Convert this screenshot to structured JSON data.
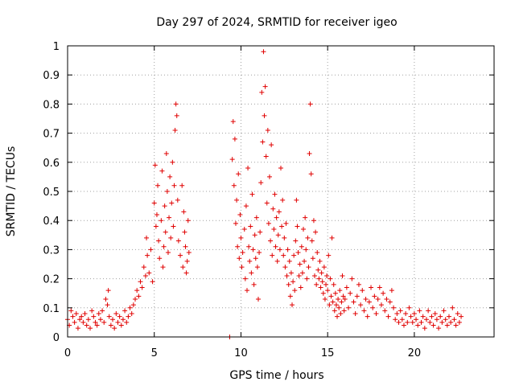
{
  "chart_data": {
    "type": "scatter",
    "title": "Day 297 of 2024, SRMTID for receiver igeo",
    "xlabel": "GPS time / hours",
    "ylabel": "SRMTID / TECUs",
    "xlim": [
      0,
      24.6
    ],
    "ylim": [
      0,
      1
    ],
    "xticks": [
      0,
      5,
      10,
      15,
      20
    ],
    "xtick_labels": [
      "0",
      "5",
      "10",
      "15",
      "20"
    ],
    "yticks": [
      0,
      0.1,
      0.2,
      0.3,
      0.4,
      0.5,
      0.6,
      0.7,
      0.8,
      0.9,
      1
    ],
    "ytick_labels": [
      "0",
      "0.1",
      "0.2",
      "0.3",
      "0.4",
      "0.5",
      "0.6",
      "0.7",
      "0.8",
      "0.9",
      "1"
    ],
    "grid": true,
    "marker": "+",
    "color": "#e00000",
    "series": [
      {
        "name": "SRMTID",
        "points": [
          [
            0.0,
            0.06
          ],
          [
            0.1,
            0.04
          ],
          [
            0.2,
            0.09
          ],
          [
            0.3,
            0.07
          ],
          [
            0.4,
            0.05
          ],
          [
            0.5,
            0.08
          ],
          [
            0.6,
            0.03
          ],
          [
            0.7,
            0.06
          ],
          [
            0.8,
            0.07
          ],
          [
            0.9,
            0.05
          ],
          [
            1.0,
            0.08
          ],
          [
            1.1,
            0.04
          ],
          [
            1.2,
            0.06
          ],
          [
            1.3,
            0.03
          ],
          [
            1.4,
            0.09
          ],
          [
            1.5,
            0.07
          ],
          [
            1.6,
            0.05
          ],
          [
            1.7,
            0.04
          ],
          [
            1.8,
            0.08
          ],
          [
            1.9,
            0.06
          ],
          [
            2.0,
            0.09
          ],
          [
            2.1,
            0.05
          ],
          [
            2.2,
            0.13
          ],
          [
            2.3,
            0.11
          ],
          [
            2.35,
            0.16
          ],
          [
            2.4,
            0.07
          ],
          [
            2.5,
            0.04
          ],
          [
            2.6,
            0.06
          ],
          [
            2.7,
            0.03
          ],
          [
            2.8,
            0.08
          ],
          [
            2.9,
            0.05
          ],
          [
            3.0,
            0.07
          ],
          [
            3.1,
            0.04
          ],
          [
            3.2,
            0.06
          ],
          [
            3.3,
            0.09
          ],
          [
            3.4,
            0.05
          ],
          [
            3.5,
            0.07
          ],
          [
            3.6,
            0.1
          ],
          [
            3.7,
            0.08
          ],
          [
            3.8,
            0.11
          ],
          [
            3.9,
            0.13
          ],
          [
            4.0,
            0.16
          ],
          [
            4.1,
            0.14
          ],
          [
            4.2,
            0.19
          ],
          [
            4.3,
            0.17
          ],
          [
            4.4,
            0.24
          ],
          [
            4.5,
            0.21
          ],
          [
            4.55,
            0.34
          ],
          [
            4.6,
            0.28
          ],
          [
            4.7,
            0.22
          ],
          [
            4.8,
            0.3
          ],
          [
            4.9,
            0.19
          ],
          [
            5.0,
            0.46
          ],
          [
            5.05,
            0.59
          ],
          [
            5.1,
            0.38
          ],
          [
            5.15,
            0.42
          ],
          [
            5.2,
            0.52
          ],
          [
            5.25,
            0.33
          ],
          [
            5.3,
            0.27
          ],
          [
            5.4,
            0.4
          ],
          [
            5.45,
            0.57
          ],
          [
            5.5,
            0.24
          ],
          [
            5.55,
            0.31
          ],
          [
            5.6,
            0.45
          ],
          [
            5.65,
            0.36
          ],
          [
            5.7,
            0.63
          ],
          [
            5.75,
            0.5
          ],
          [
            5.8,
            0.29
          ],
          [
            5.85,
            0.41
          ],
          [
            5.9,
            0.55
          ],
          [
            5.95,
            0.34
          ],
          [
            6.0,
            0.46
          ],
          [
            6.05,
            0.6
          ],
          [
            6.1,
            0.38
          ],
          [
            6.15,
            0.52
          ],
          [
            6.2,
            0.71
          ],
          [
            6.25,
            0.8
          ],
          [
            6.3,
            0.76
          ],
          [
            6.35,
            0.47
          ],
          [
            6.4,
            0.33
          ],
          [
            6.5,
            0.28
          ],
          [
            6.6,
            0.52
          ],
          [
            6.65,
            0.24
          ],
          [
            6.7,
            0.43
          ],
          [
            6.75,
            0.36
          ],
          [
            6.8,
            0.31
          ],
          [
            6.85,
            0.22
          ],
          [
            6.9,
            0.26
          ],
          [
            6.95,
            0.4
          ],
          [
            7.0,
            0.29
          ],
          [
            9.35,
            0.0
          ],
          [
            9.5,
            0.61
          ],
          [
            9.55,
            0.74
          ],
          [
            9.6,
            0.52
          ],
          [
            9.65,
            0.68
          ],
          [
            9.7,
            0.39
          ],
          [
            9.75,
            0.47
          ],
          [
            9.8,
            0.31
          ],
          [
            9.85,
            0.56
          ],
          [
            9.9,
            0.27
          ],
          [
            9.95,
            0.42
          ],
          [
            10.0,
            0.34
          ],
          [
            10.05,
            0.24
          ],
          [
            10.1,
            0.29
          ],
          [
            10.2,
            0.37
          ],
          [
            10.25,
            0.2
          ],
          [
            10.3,
            0.45
          ],
          [
            10.35,
            0.16
          ],
          [
            10.4,
            0.58
          ],
          [
            10.45,
            0.31
          ],
          [
            10.5,
            0.26
          ],
          [
            10.55,
            0.38
          ],
          [
            10.6,
            0.22
          ],
          [
            10.65,
            0.49
          ],
          [
            10.7,
            0.3
          ],
          [
            10.75,
            0.18
          ],
          [
            10.8,
            0.35
          ],
          [
            10.85,
            0.27
          ],
          [
            10.9,
            0.41
          ],
          [
            10.95,
            0.24
          ],
          [
            11.0,
            0.13
          ],
          [
            11.05,
            0.29
          ],
          [
            11.1,
            0.36
          ],
          [
            11.15,
            0.53
          ],
          [
            11.2,
            0.84
          ],
          [
            11.25,
            0.67
          ],
          [
            11.3,
            0.98
          ],
          [
            11.35,
            0.76
          ],
          [
            11.4,
            0.86
          ],
          [
            11.45,
            0.62
          ],
          [
            11.5,
            0.46
          ],
          [
            11.55,
            0.71
          ],
          [
            11.6,
            0.39
          ],
          [
            11.65,
            0.55
          ],
          [
            11.7,
            0.33
          ],
          [
            11.75,
            0.66
          ],
          [
            11.8,
            0.28
          ],
          [
            11.85,
            0.44
          ],
          [
            11.9,
            0.37
          ],
          [
            11.95,
            0.49
          ],
          [
            12.0,
            0.31
          ],
          [
            12.05,
            0.41
          ],
          [
            12.1,
            0.26
          ],
          [
            12.15,
            0.35
          ],
          [
            12.2,
            0.43
          ],
          [
            12.25,
            0.3
          ],
          [
            12.3,
            0.58
          ],
          [
            12.35,
            0.38
          ],
          [
            12.4,
            0.47
          ],
          [
            12.45,
            0.28
          ],
          [
            12.5,
            0.34
          ],
          [
            12.55,
            0.24
          ],
          [
            12.6,
            0.39
          ],
          [
            12.65,
            0.21
          ],
          [
            12.7,
            0.3
          ],
          [
            12.75,
            0.18
          ],
          [
            12.8,
            0.26
          ],
          [
            12.85,
            0.14
          ],
          [
            12.9,
            0.22
          ],
          [
            12.95,
            0.11
          ],
          [
            13.0,
            0.19
          ],
          [
            13.05,
            0.28
          ],
          [
            13.1,
            0.16
          ],
          [
            13.15,
            0.33
          ],
          [
            13.2,
            0.47
          ],
          [
            13.25,
            0.38
          ],
          [
            13.3,
            0.29
          ],
          [
            13.35,
            0.21
          ],
          [
            13.4,
            0.25
          ],
          [
            13.45,
            0.17
          ],
          [
            13.5,
            0.31
          ],
          [
            13.55,
            0.22
          ],
          [
            13.6,
            0.37
          ],
          [
            13.65,
            0.26
          ],
          [
            13.7,
            0.41
          ],
          [
            13.75,
            0.3
          ],
          [
            13.8,
            0.2
          ],
          [
            13.85,
            0.34
          ],
          [
            13.9,
            0.24
          ],
          [
            13.95,
            0.63
          ],
          [
            14.0,
            0.8
          ],
          [
            14.05,
            0.56
          ],
          [
            14.1,
            0.33
          ],
          [
            14.15,
            0.27
          ],
          [
            14.2,
            0.4
          ],
          [
            14.25,
            0.21
          ],
          [
            14.3,
            0.36
          ],
          [
            14.35,
            0.18
          ],
          [
            14.4,
            0.29
          ],
          [
            14.45,
            0.23
          ],
          [
            14.5,
            0.2
          ],
          [
            14.55,
            0.26
          ],
          [
            14.6,
            0.17
          ],
          [
            14.65,
            0.22
          ],
          [
            14.7,
            0.19
          ],
          [
            14.75,
            0.15
          ],
          [
            14.8,
            0.24
          ],
          [
            14.85,
            0.13
          ],
          [
            14.9,
            0.18
          ],
          [
            14.95,
            0.21
          ],
          [
            15.0,
            0.16
          ],
          [
            15.05,
            0.28
          ],
          [
            15.1,
            0.11
          ],
          [
            15.15,
            0.2
          ],
          [
            15.2,
            0.14
          ],
          [
            15.25,
            0.34
          ],
          [
            15.3,
            0.12
          ],
          [
            15.35,
            0.18
          ],
          [
            15.4,
            0.09
          ],
          [
            15.45,
            0.15
          ],
          [
            15.5,
            0.11
          ],
          [
            15.55,
            0.07
          ],
          [
            15.6,
            0.13
          ],
          [
            15.65,
            0.1
          ],
          [
            15.7,
            0.16
          ],
          [
            15.75,
            0.08
          ],
          [
            15.8,
            0.12
          ],
          [
            15.85,
            0.21
          ],
          [
            15.9,
            0.14
          ],
          [
            15.95,
            0.09
          ],
          [
            16.0,
            0.13
          ],
          [
            16.1,
            0.17
          ],
          [
            16.2,
            0.1
          ],
          [
            16.3,
            0.15
          ],
          [
            16.4,
            0.2
          ],
          [
            16.5,
            0.12
          ],
          [
            16.6,
            0.08
          ],
          [
            16.7,
            0.14
          ],
          [
            16.8,
            0.18
          ],
          [
            16.9,
            0.11
          ],
          [
            17.0,
            0.16
          ],
          [
            17.1,
            0.09
          ],
          [
            17.2,
            0.13
          ],
          [
            17.3,
            0.07
          ],
          [
            17.4,
            0.12
          ],
          [
            17.5,
            0.17
          ],
          [
            17.6,
            0.1
          ],
          [
            17.7,
            0.14
          ],
          [
            17.8,
            0.08
          ],
          [
            17.9,
            0.13
          ],
          [
            18.0,
            0.17
          ],
          [
            18.1,
            0.11
          ],
          [
            18.2,
            0.15
          ],
          [
            18.3,
            0.09
          ],
          [
            18.4,
            0.13
          ],
          [
            18.5,
            0.07
          ],
          [
            18.6,
            0.12
          ],
          [
            18.7,
            0.16
          ],
          [
            18.8,
            0.1
          ],
          [
            18.9,
            0.06
          ],
          [
            19.0,
            0.08
          ],
          [
            19.1,
            0.05
          ],
          [
            19.2,
            0.09
          ],
          [
            19.3,
            0.06
          ],
          [
            19.4,
            0.04
          ],
          [
            19.5,
            0.08
          ],
          [
            19.6,
            0.05
          ],
          [
            19.7,
            0.1
          ],
          [
            19.8,
            0.07
          ],
          [
            19.9,
            0.05
          ],
          [
            20.0,
            0.08
          ],
          [
            20.1,
            0.06
          ],
          [
            20.2,
            0.04
          ],
          [
            20.3,
            0.09
          ],
          [
            20.4,
            0.05
          ],
          [
            20.5,
            0.07
          ],
          [
            20.6,
            0.03
          ],
          [
            20.7,
            0.06
          ],
          [
            20.8,
            0.09
          ],
          [
            20.9,
            0.05
          ],
          [
            21.0,
            0.07
          ],
          [
            21.1,
            0.04
          ],
          [
            21.2,
            0.08
          ],
          [
            21.3,
            0.06
          ],
          [
            21.4,
            0.03
          ],
          [
            21.5,
            0.07
          ],
          [
            21.6,
            0.05
          ],
          [
            21.7,
            0.09
          ],
          [
            21.8,
            0.06
          ],
          [
            21.9,
            0.04
          ],
          [
            22.0,
            0.07
          ],
          [
            22.1,
            0.05
          ],
          [
            22.2,
            0.1
          ],
          [
            22.3,
            0.06
          ],
          [
            22.4,
            0.04
          ],
          [
            22.5,
            0.08
          ],
          [
            22.6,
            0.05
          ],
          [
            22.7,
            0.07
          ]
        ]
      }
    ]
  }
}
